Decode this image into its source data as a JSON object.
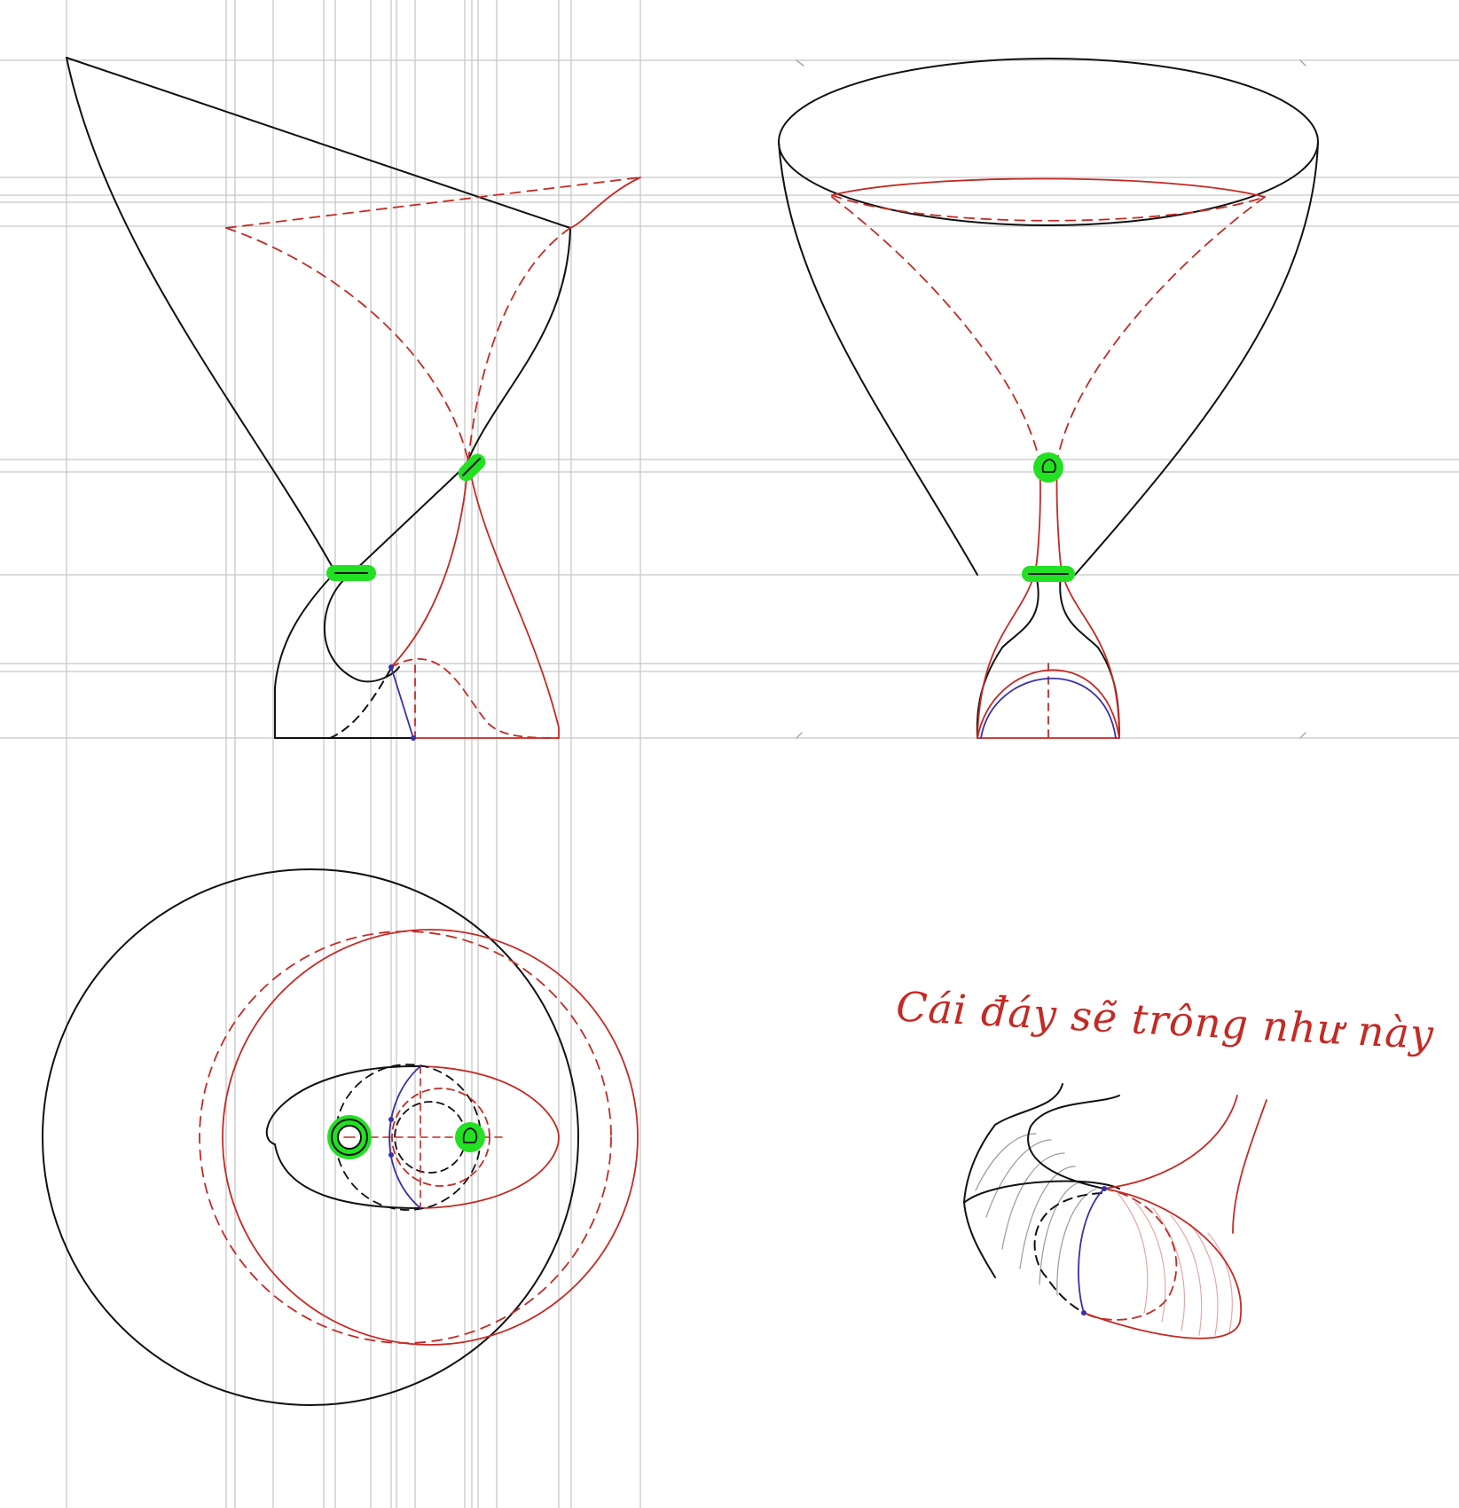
{
  "annotation": {
    "text": "Cái đáy sẽ trông như này"
  },
  "colors": {
    "background": "#ffffff",
    "grid": "#c8c8c8",
    "ink": "#111111",
    "red": "#c42a24",
    "blue": "#3a2fa8",
    "highlight": "#22e022",
    "hatch_gray": "#9a9a9a",
    "hatch_pink": "#e6a7a4"
  },
  "views": [
    {
      "name": "side-view"
    },
    {
      "name": "front-view"
    },
    {
      "name": "top-view"
    },
    {
      "name": "detail-sketch"
    }
  ]
}
